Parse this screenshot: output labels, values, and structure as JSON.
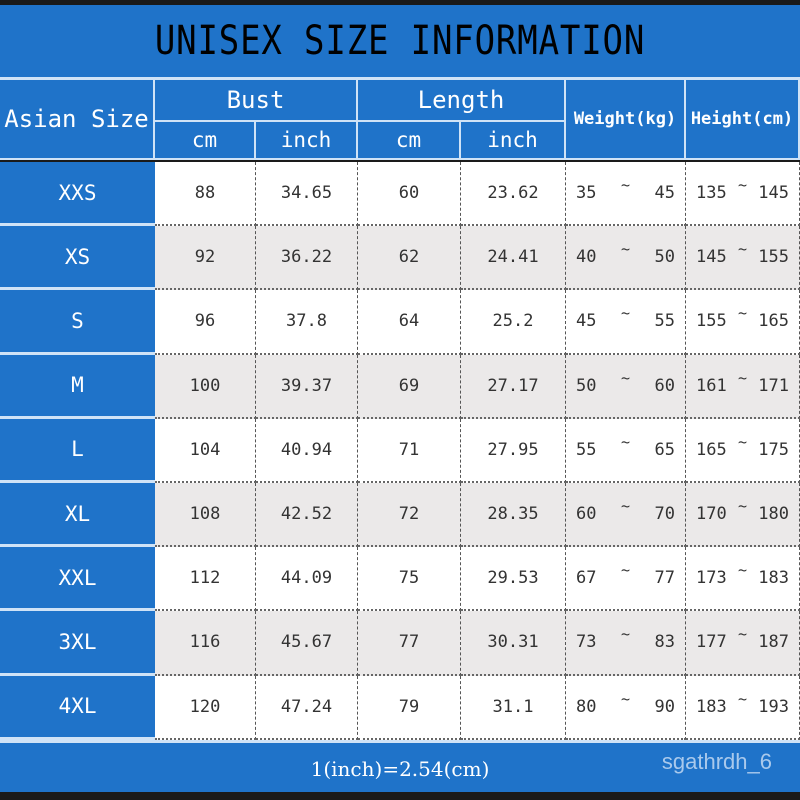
{
  "title": "UNISEX SIZE INFORMATION",
  "headers": {
    "size": "Asian Size",
    "bust": "Bust",
    "length": "Length",
    "weight": "Weight(kg)",
    "height": "Height(cm)",
    "cm": "cm",
    "inch": "inch"
  },
  "rows": [
    [
      "XXS",
      "88",
      "34.65",
      "60",
      "23.62",
      "35",
      "45",
      "135",
      "145"
    ],
    [
      "XS",
      "92",
      "36.22",
      "62",
      "24.41",
      "40",
      "50",
      "145",
      "155"
    ],
    [
      "S",
      "96",
      "37.8",
      "64",
      "25.2",
      "45",
      "55",
      "155",
      "165"
    ],
    [
      "M",
      "100",
      "39.37",
      "69",
      "27.17",
      "50",
      "60",
      "161",
      "171"
    ],
    [
      "L",
      "104",
      "40.94",
      "71",
      "27.95",
      "55",
      "65",
      "165",
      "175"
    ],
    [
      "XL",
      "108",
      "42.52",
      "72",
      "28.35",
      "60",
      "70",
      "170",
      "180"
    ],
    [
      "XXL",
      "112",
      "44.09",
      "75",
      "29.53",
      "67",
      "77",
      "173",
      "183"
    ],
    [
      "3XL",
      "116",
      "45.67",
      "77",
      "30.31",
      "73",
      "83",
      "177",
      "187"
    ],
    [
      "4XL",
      "120",
      "47.24",
      "79",
      "31.1",
      "80",
      "90",
      "183",
      "193"
    ]
  ],
  "range_separator": "~",
  "footer": "1(inch)=2.54(cm)",
  "watermark": "sgathrdh_6",
  "colors": {
    "header_blue": "#1f73c9",
    "row_alt": "#ebe9e9"
  }
}
